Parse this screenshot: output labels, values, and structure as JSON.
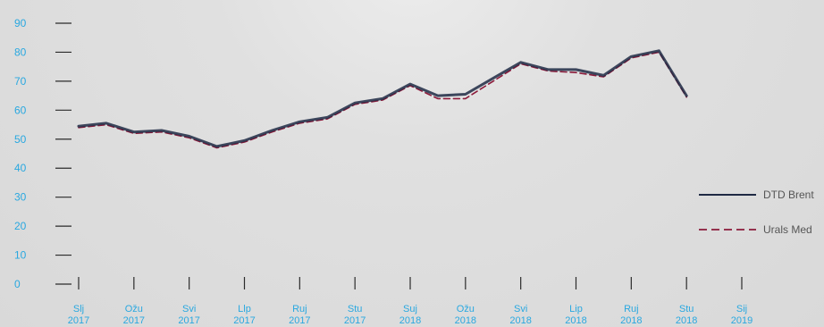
{
  "chart_data": {
    "type": "line",
    "title": "",
    "xlabel": "",
    "ylabel": "",
    "ylim": [
      0,
      90
    ],
    "y_ticks": [
      0,
      10,
      20,
      30,
      40,
      50,
      60,
      70,
      80,
      90
    ],
    "x_ticks": [
      {
        "month": "Slj",
        "year": "2017"
      },
      {
        "month": "Ožu",
        "year": "2017"
      },
      {
        "month": "Svi",
        "year": "2017"
      },
      {
        "month": "Llp",
        "year": "2017"
      },
      {
        "month": "Ruj",
        "year": "2017"
      },
      {
        "month": "Stu",
        "year": "2017"
      },
      {
        "month": "Suj",
        "year": "2018"
      },
      {
        "month": "Ožu",
        "year": "2018"
      },
      {
        "month": "Svi",
        "year": "2018"
      },
      {
        "month": "Lip",
        "year": "2018"
      },
      {
        "month": "Ruj",
        "year": "2018"
      },
      {
        "month": "Stu",
        "year": "2018"
      },
      {
        "month": "Sij",
        "year": "2019"
      }
    ],
    "x_range": [
      0,
      24
    ],
    "grid": false,
    "legend_position": "right",
    "series": [
      {
        "name": "DTD Brent",
        "color": "#1f2a44",
        "style": "solid",
        "x": [
          0,
          1,
          2,
          3,
          4,
          5,
          6,
          7,
          8,
          9,
          10,
          11,
          12,
          13,
          14,
          15,
          16,
          17,
          18,
          19,
          20,
          21,
          22
        ],
        "values": [
          54.5,
          55.5,
          52.5,
          53,
          51,
          47.5,
          49.5,
          53,
          56,
          57.5,
          62.5,
          64,
          69,
          65,
          65.5,
          71,
          76.5,
          74,
          74,
          72,
          78.5,
          80.5,
          65
        ]
      },
      {
        "name": "Urals Med",
        "color": "#8b1a3a",
        "style": "dashed",
        "x": [
          0,
          1,
          2,
          3,
          4,
          5,
          6,
          7,
          8,
          9,
          10,
          11,
          12,
          13,
          14,
          15,
          16,
          17,
          18,
          19,
          20,
          21,
          22
        ],
        "values": [
          54,
          55,
          52,
          52.5,
          50.5,
          47,
          49,
          52.5,
          55.5,
          57,
          62,
          63.5,
          68.5,
          64,
          64,
          70,
          76,
          73.5,
          73,
          71.5,
          78,
          80,
          64.5
        ]
      }
    ]
  }
}
